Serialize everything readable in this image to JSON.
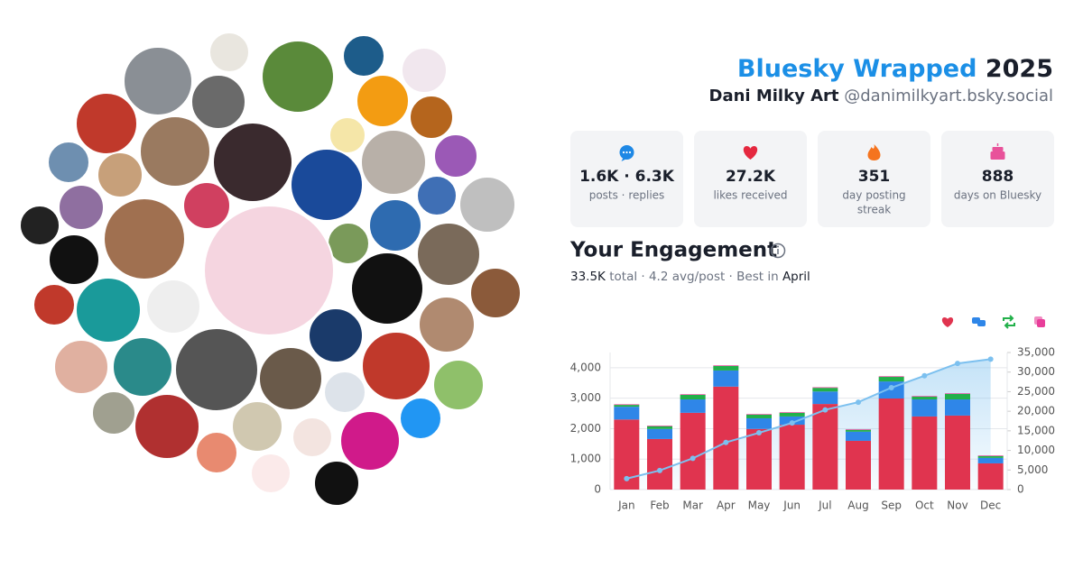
{
  "header": {
    "title_brand": "Bluesky Wrapped",
    "title_year": "2025",
    "name": "Dani Milky Art",
    "handle": "@danimilkyart.bsky.social"
  },
  "stats": [
    {
      "value": "1.6K · 6.3K",
      "label": "posts · replies"
    },
    {
      "value": "27.2K",
      "label": "likes received"
    },
    {
      "value": "351",
      "label": [
        "day posting",
        "streak"
      ]
    },
    {
      "value": "888",
      "label": "days on Bluesky"
    }
  ],
  "engagement": {
    "title": "Your Engagement",
    "summary": [
      "33.5K",
      "total",
      "· 4.2 avg/post · Best in",
      "April"
    ]
  },
  "chart_data": {
    "type": "bar",
    "stacked": true,
    "grid": true,
    "categories": [
      "Jan",
      "Feb",
      "Mar",
      "Apr",
      "May",
      "Jun",
      "Jul",
      "Aug",
      "Sep",
      "Oct",
      "Nov",
      "Dec"
    ],
    "series": [
      {
        "color": "#e0344f",
        "values": [
          2300,
          1660,
          2520,
          3380,
          1990,
          2130,
          2810,
          1600,
          2990,
          2400,
          2430,
          860
        ]
      },
      {
        "color": "#2f86e8",
        "values": [
          420,
          330,
          440,
          530,
          350,
          270,
          410,
          300,
          560,
          560,
          530,
          180
        ]
      },
      {
        "color": "#22b04a",
        "values": [
          60,
          90,
          150,
          150,
          120,
          120,
          120,
          60,
          150,
          90,
          180,
          60
        ]
      },
      {
        "color": "#e83e9a",
        "values": [
          20,
          20,
          20,
          20,
          20,
          20,
          20,
          20,
          20,
          20,
          20,
          20
        ]
      },
      {
        "type": "line",
        "axis": "y2",
        "color": "#7cc0ef",
        "values": [
          2790,
          4870,
          7980,
          12040,
          14500,
          17020,
          20360,
          22320,
          26020,
          29070,
          32210,
          33310
        ]
      }
    ],
    "ylim": [
      0,
      4500
    ],
    "yticks": [
      0,
      {
        "value": 1000,
        "label": "1,000"
      },
      {
        "value": 2000,
        "label": "2,000"
      },
      {
        "value": 3000,
        "label": "3,000"
      },
      {
        "value": 4000,
        "label": "4,000"
      }
    ],
    "y2lim": [
      0,
      35000
    ],
    "y2ticks": [
      0,
      {
        "value": 5000,
        "label": "5,000"
      },
      {
        "value": 10000,
        "label": "10,000"
      },
      {
        "value": 15000,
        "label": "15,000"
      },
      {
        "value": 20000,
        "label": "20,000"
      },
      {
        "value": 25000,
        "label": "25,000"
      },
      {
        "value": 30000,
        "label": "30,000"
      },
      {
        "value": 35000,
        "label": "35,000"
      }
    ]
  }
}
